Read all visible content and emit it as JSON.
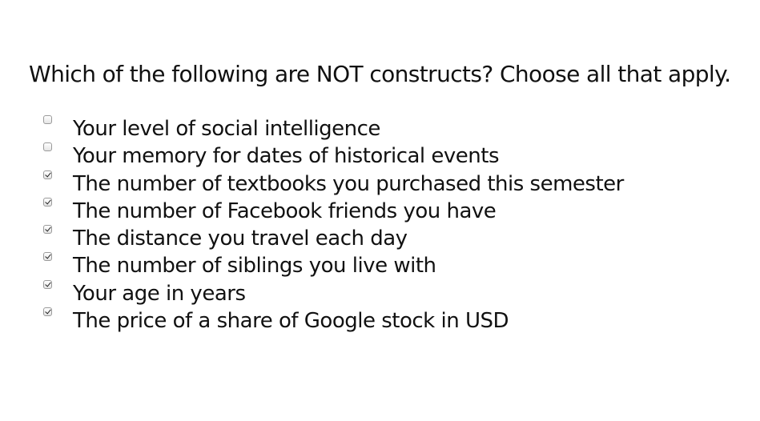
{
  "question": "Which of the following are NOT constructs? Choose all that apply.",
  "options": [
    {
      "label": "Your level of social intelligence",
      "checked": false
    },
    {
      "label": "Your memory for dates of historical events",
      "checked": false
    },
    {
      "label": "The number of textbooks you purchased this semester",
      "checked": true
    },
    {
      "label": "The number of Facebook friends you have",
      "checked": true
    },
    {
      "label": "The distance you travel each day",
      "checked": true
    },
    {
      "label": "The number of siblings you live with",
      "checked": true
    },
    {
      "label": "Your age in years",
      "checked": true
    },
    {
      "label": "The price of a share of Google stock in USD",
      "checked": true
    }
  ]
}
